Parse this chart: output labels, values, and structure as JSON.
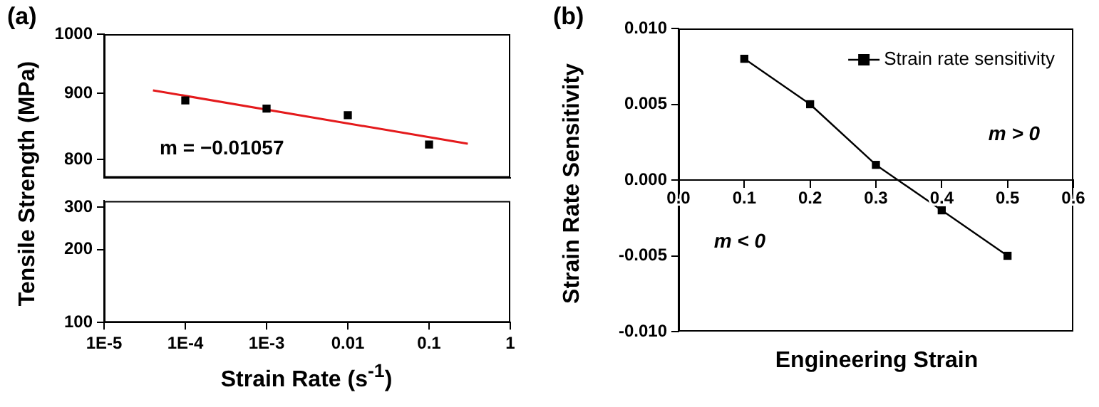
{
  "chart_data": [
    {
      "type": "scatter",
      "title": "(a)",
      "ylabel": "Tensile Strength (MPa)",
      "log": "xy",
      "marker": "square",
      "grid": false,
      "tick_labels": "y",
      "xlim": [
        1e-05,
        1
      ],
      "ylim": [
        775,
        1000
      ],
      "yticks": [
        800,
        900,
        1000
      ],
      "series": [
        {
          "type": "scatter",
          "color": "#000000",
          "x": [
            0.0001,
            0.001,
            0.01,
            0.1
          ],
          "values": [
            889,
            876,
            866,
            822
          ]
        },
        {
          "type": "line",
          "marker": "none",
          "color": "#e41a1c",
          "x": [
            4e-05,
            0.3
          ],
          "values": [
            905,
            823
          ]
        }
      ],
      "annotations": [
        "m = −0.01057"
      ]
    },
    {
      "type": "scatter",
      "xlabel": "Strain Rate (s$^{-1}$)",
      "log": "xy",
      "grid": false,
      "xlim": [
        1e-05,
        1
      ],
      "xticks": [
        {
          "value": 1e-05,
          "label": "1E-5"
        },
        {
          "value": 0.0001,
          "label": "1E-4"
        },
        {
          "value": 0.001,
          "label": "1E-3"
        },
        0.01,
        0.1,
        1
      ],
      "ylim": [
        100,
        318
      ],
      "yticks": [
        100,
        200,
        300
      ]
    },
    {
      "type": "line",
      "title": "(b)",
      "xlabel": "Engineering Strain",
      "ylabel": "Strain Rate Sensitivity",
      "marker": "square",
      "line_style": "solid",
      "grid": false,
      "legend": "top right",
      "xlim": [
        0,
        0.6
      ],
      "xticks": [
        {
          "value": 0,
          "label": "0.0"
        },
        0.1,
        0.2,
        0.3,
        0.4,
        0.5,
        0.6
      ],
      "ylim": [
        -0.01,
        0.01
      ],
      "yticks": [
        {
          "value": -0.01,
          "label": "-0.010"
        },
        {
          "value": -0.005,
          "label": "-0.005"
        },
        {
          "value": 0,
          "label": "0.000"
        },
        {
          "value": 0.005,
          "label": "0.005"
        },
        {
          "value": 0.01,
          "label": "0.010"
        }
      ],
      "x": [
        0.1,
        0.2,
        0.3,
        0.4,
        0.5
      ],
      "series": [
        {
          "name": "Strain rate sensitivity",
          "color": "#000000",
          "values": [
            0.008,
            0.005,
            0.001,
            -0.002,
            -0.005
          ]
        }
      ],
      "annotations": [
        "m > 0",
        "m < 0"
      ]
    }
  ]
}
